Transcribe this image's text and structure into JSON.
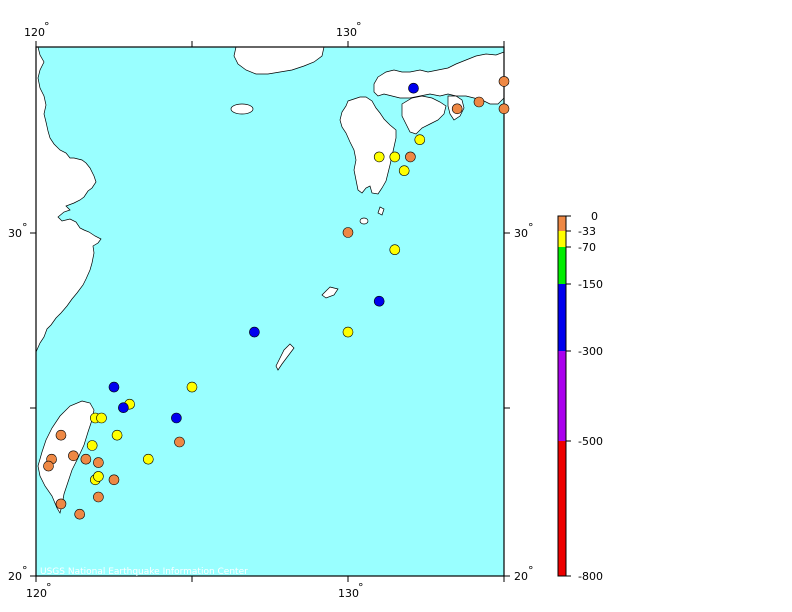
{
  "map": {
    "credit": "USGS National Earthquake Information Center",
    "lon_labels_top": [
      "120",
      "130"
    ],
    "lon_labels_bottom": [
      "120",
      "130"
    ],
    "lat_labels_left": [
      "30",
      "20"
    ],
    "lat_labels_right": [
      "30",
      "20"
    ],
    "colors": {
      "ocean": "#99ffff",
      "land": "#ffffff",
      "coast": "#000000"
    }
  },
  "legend": {
    "labels": [
      "0",
      "-33",
      "-70",
      "-150",
      "-300",
      "-500",
      "-800"
    ],
    "bands": [
      {
        "from": 0,
        "to": -33,
        "color": "#ee8844"
      },
      {
        "from": -33,
        "to": -70,
        "color": "#ffff00"
      },
      {
        "from": -70,
        "to": -150,
        "color": "#00ee00"
      },
      {
        "from": -150,
        "to": -300,
        "color": "#0000ee"
      },
      {
        "from": -300,
        "to": -500,
        "color": "#aa00ee"
      },
      {
        "from": -500,
        "to": -800,
        "color": "#ee0000"
      }
    ]
  },
  "earthquakes": [
    {
      "lon": 132.1,
      "lat": 34.2,
      "depth_class": "-150"
    },
    {
      "lon": 133.5,
      "lat": 33.6,
      "depth_class": "0"
    },
    {
      "lon": 134.2,
      "lat": 33.8,
      "depth_class": "0"
    },
    {
      "lon": 135.0,
      "lat": 33.6,
      "depth_class": "0"
    },
    {
      "lon": 131.0,
      "lat": 32.2,
      "depth_class": "-33"
    },
    {
      "lon": 131.5,
      "lat": 32.2,
      "depth_class": "-33"
    },
    {
      "lon": 132.0,
      "lat": 32.2,
      "depth_class": "0"
    },
    {
      "lon": 132.3,
      "lat": 32.7,
      "depth_class": "-33"
    },
    {
      "lon": 131.8,
      "lat": 31.8,
      "depth_class": "-33"
    },
    {
      "lon": 130.0,
      "lat": 30.0,
      "depth_class": "0"
    },
    {
      "lon": 131.5,
      "lat": 29.5,
      "depth_class": "-33"
    },
    {
      "lon": 131.0,
      "lat": 28.0,
      "depth_class": "-150"
    },
    {
      "lon": 127.0,
      "lat": 27.1,
      "depth_class": "-150"
    },
    {
      "lon": 130.0,
      "lat": 27.1,
      "depth_class": "-33"
    },
    {
      "lon": 125.0,
      "lat": 25.5,
      "depth_class": "-33"
    },
    {
      "lon": 122.5,
      "lat": 25.5,
      "depth_class": "-150"
    },
    {
      "lon": 123.0,
      "lat": 25.0,
      "depth_class": "-33"
    },
    {
      "lon": 122.8,
      "lat": 24.9,
      "depth_class": "-150"
    },
    {
      "lon": 121.9,
      "lat": 24.6,
      "depth_class": "-33"
    },
    {
      "lon": 122.1,
      "lat": 24.6,
      "depth_class": "-33"
    },
    {
      "lon": 124.5,
      "lat": 24.6,
      "depth_class": "-150"
    },
    {
      "lon": 122.6,
      "lat": 24.1,
      "depth_class": "-33"
    },
    {
      "lon": 124.6,
      "lat": 23.9,
      "depth_class": "0"
    },
    {
      "lon": 120.8,
      "lat": 24.1,
      "depth_class": "0"
    },
    {
      "lon": 121.8,
      "lat": 23.8,
      "depth_class": "-33"
    },
    {
      "lon": 121.2,
      "lat": 23.5,
      "depth_class": "0"
    },
    {
      "lon": 121.6,
      "lat": 23.4,
      "depth_class": "0"
    },
    {
      "lon": 120.5,
      "lat": 23.4,
      "depth_class": "0"
    },
    {
      "lon": 120.4,
      "lat": 23.2,
      "depth_class": "0"
    },
    {
      "lon": 122.0,
      "lat": 23.3,
      "depth_class": "0"
    },
    {
      "lon": 123.6,
      "lat": 23.4,
      "depth_class": "-33"
    },
    {
      "lon": 121.9,
      "lat": 22.8,
      "depth_class": "-33"
    },
    {
      "lon": 122.0,
      "lat": 22.9,
      "depth_class": "-33"
    },
    {
      "lon": 122.5,
      "lat": 22.8,
      "depth_class": "0"
    },
    {
      "lon": 122.0,
      "lat": 22.3,
      "depth_class": "0"
    },
    {
      "lon": 120.8,
      "lat": 22.1,
      "depth_class": "0"
    },
    {
      "lon": 121.4,
      "lat": 21.8,
      "depth_class": "0"
    },
    {
      "lon": 135.0,
      "lat": 34.4,
      "depth_class": "0"
    }
  ]
}
